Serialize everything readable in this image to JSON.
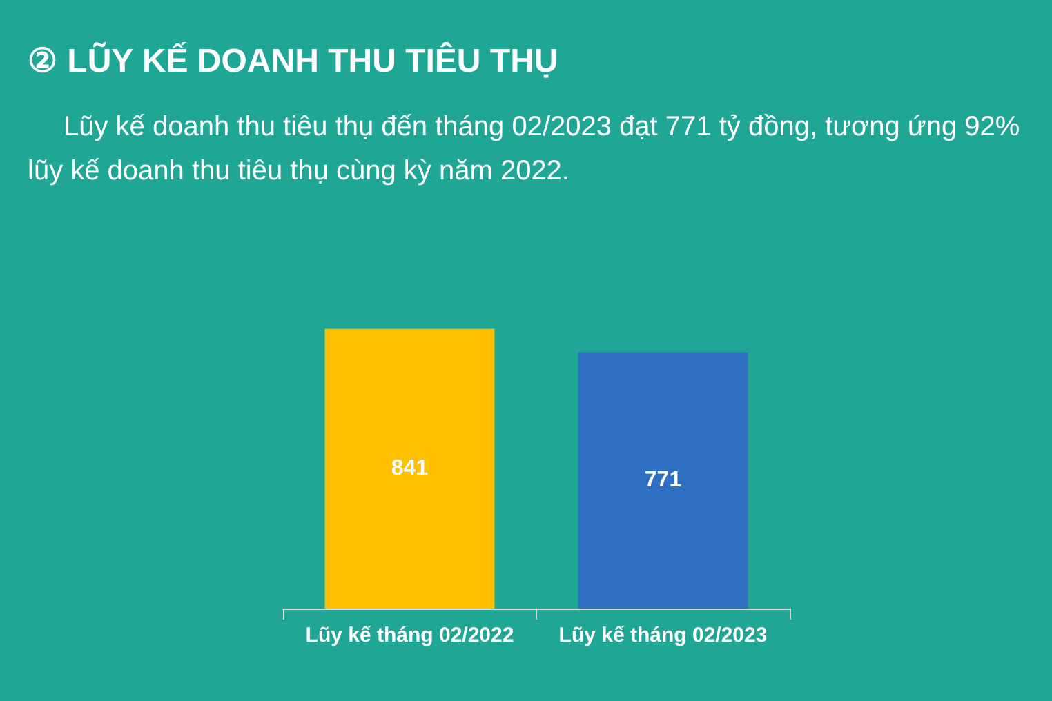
{
  "chart_data": {
    "type": "bar",
    "title": "② LŨY KẾ DOANH THU TIÊU THỤ",
    "subtitle": "Lũy kế doanh thu tiêu thụ đến tháng 02/2023 đạt 771 tỷ đồng, tương ứng 92% lũy kế doanh thu tiêu thụ cùng kỳ năm 2022.",
    "categories": [
      "Lũy kế tháng 02/2022",
      "Lũy kế tháng 02/2023"
    ],
    "values": [
      841,
      771
    ],
    "colors": [
      "#ffc000",
      "#2e6fc4"
    ],
    "data_labels": true
  }
}
